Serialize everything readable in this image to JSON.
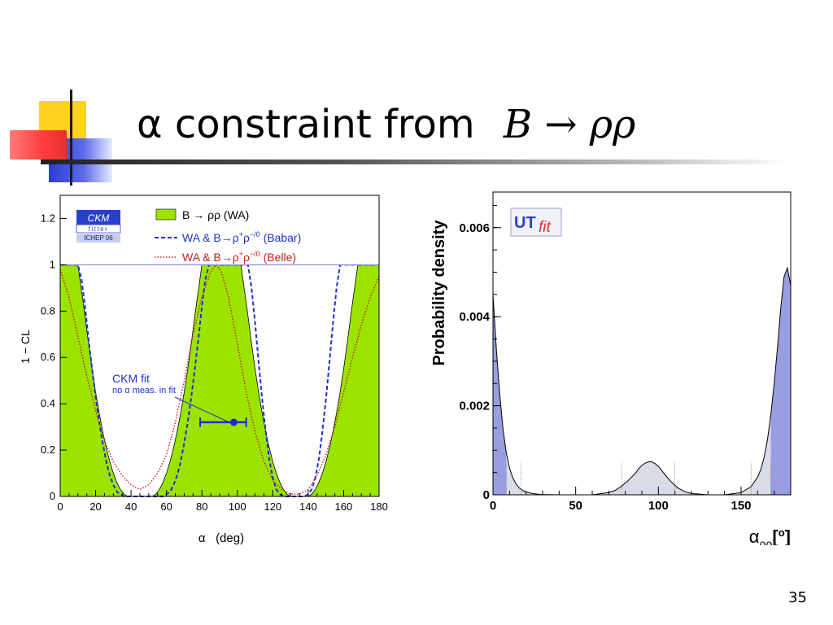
{
  "slide": {
    "title_prefix": "α constraint from",
    "title_math": "B → ρρ",
    "page_number": "35"
  },
  "colors": {
    "accent_yellow": "#FFD21F",
    "accent_red": "#FF3C3C",
    "accent_blue": "#2A3BD6",
    "wa_fill": "#9CE400",
    "babar_line": "#1F2FCC",
    "belle_line": "#C41E1E",
    "utfit_fill": "#9A9DE0",
    "utfit_light": "#D8DCE6"
  },
  "chart_data": [
    {
      "type": "area",
      "xlabel": "α   (deg)",
      "ylabel": "1 − CL",
      "xlim": [
        0,
        180
      ],
      "ylim": [
        0,
        1.3
      ],
      "x_ticks": [
        "0",
        "20",
        "40",
        "60",
        "80",
        "100",
        "120",
        "140",
        "160",
        "180"
      ],
      "y_ticks": [
        "0",
        "0.2",
        "0.4",
        "0.6",
        "0.8",
        "1",
        "1.2"
      ],
      "logo": {
        "name": "CKM",
        "sub": "fitter",
        "conference": "ICHEP 06"
      },
      "legend": [
        {
          "label": "B → ρρ (WA)"
        },
        {
          "label_prefix": "WA & B→ρ",
          "label_sup1": "+",
          "label_mid": "ρ",
          "label_sup2": "−/0",
          "label_suffix": " (Babar)"
        },
        {
          "label_prefix": "WA &  B→ρ",
          "label_sup1": "+",
          "label_mid": "ρ",
          "label_sup2": "−/0",
          "label_suffix": " (Belle)"
        }
      ],
      "annotation": {
        "line1": "CKM fit",
        "line2": "no α meas. in fit"
      },
      "fit_point": {
        "central": 98,
        "low": 79,
        "high": 105,
        "y": 0.32
      },
      "series": [
        {
          "style": "filled",
          "x": [
            0,
            10,
            12,
            14,
            16,
            18,
            20,
            22,
            24,
            26,
            28,
            30,
            32,
            34,
            36,
            38,
            40,
            42,
            44,
            46,
            48,
            50,
            52,
            54,
            56,
            58,
            60,
            62,
            64,
            66,
            68,
            70,
            72,
            74,
            76,
            78,
            80,
            82,
            84,
            86,
            88,
            90,
            92,
            94,
            96,
            98,
            100,
            102,
            104,
            106,
            108,
            110,
            112,
            114,
            116,
            118,
            120,
            122,
            124,
            126,
            128,
            130,
            132,
            134,
            136,
            138,
            140,
            142,
            144,
            146,
            148,
            150,
            152,
            154,
            156,
            158,
            160,
            162,
            164,
            166,
            168,
            170,
            180
          ],
          "y": [
            1,
            1,
            0.89,
            0.78,
            0.66,
            0.55,
            0.45,
            0.36,
            0.28,
            0.21,
            0.15,
            0.1,
            0.06,
            0.03,
            0.01,
            0,
            0,
            0,
            0,
            0,
            0,
            0,
            0,
            0.01,
            0.03,
            0.06,
            0.1,
            0.15,
            0.21,
            0.28,
            0.36,
            0.45,
            0.55,
            0.66,
            0.78,
            0.89,
            1,
            1,
            1,
            1,
            1,
            1,
            1,
            1,
            1,
            1,
            1,
            1,
            0.89,
            0.78,
            0.66,
            0.55,
            0.45,
            0.36,
            0.28,
            0.21,
            0.15,
            0.1,
            0.06,
            0.03,
            0.01,
            0,
            0,
            0,
            0,
            0,
            0,
            0.01,
            0.03,
            0.06,
            0.1,
            0.15,
            0.21,
            0.28,
            0.36,
            0.45,
            0.55,
            0.66,
            0.78,
            0.89,
            1,
            1,
            1
          ]
        },
        {
          "style": "dashed",
          "x": [
            0,
            2,
            4,
            6,
            8,
            10,
            12,
            14,
            16,
            18,
            20,
            22,
            24,
            26,
            28,
            30,
            32,
            34,
            36,
            38,
            40,
            42,
            44,
            46,
            48,
            50,
            52,
            54,
            56,
            58,
            60,
            62,
            64,
            66,
            68,
            70,
            72,
            74,
            76,
            78,
            80,
            82,
            84,
            86,
            88,
            90,
            92,
            94,
            96,
            98,
            100,
            102,
            104,
            106,
            108,
            110,
            112,
            114,
            116,
            118,
            120,
            122,
            124,
            126,
            128,
            130,
            132,
            134,
            136,
            138,
            140,
            142,
            144,
            146,
            148,
            150,
            152,
            154,
            156,
            158,
            160,
            162,
            164,
            166,
            168,
            170,
            172,
            174,
            176,
            178,
            180
          ],
          "y": [
            1,
            1,
            1,
            1,
            1,
            1,
            0.94,
            0.82,
            0.68,
            0.55,
            0.43,
            0.32,
            0.23,
            0.15,
            0.09,
            0.05,
            0.02,
            0.01,
            0,
            0,
            0,
            0,
            0,
            0,
            0,
            0,
            0,
            0,
            0,
            0,
            0.01,
            0.02,
            0.05,
            0.09,
            0.15,
            0.23,
            0.32,
            0.43,
            0.55,
            0.68,
            0.82,
            0.94,
            1,
            1,
            1,
            1,
            1,
            1,
            1,
            1,
            1,
            1,
            1,
            1,
            0.9,
            0.75,
            0.58,
            0.42,
            0.28,
            0.16,
            0.08,
            0.03,
            0.01,
            0,
            0,
            0,
            0,
            0,
            0,
            0,
            0.01,
            0.03,
            0.08,
            0.16,
            0.28,
            0.42,
            0.58,
            0.75,
            0.9,
            1,
            1,
            1,
            1,
            1,
            1,
            1,
            1,
            1,
            1,
            1,
            1
          ]
        },
        {
          "style": "dotted",
          "x": [
            0,
            5,
            10,
            15,
            20,
            25,
            30,
            35,
            40,
            45,
            50,
            55,
            60,
            65,
            70,
            75,
            80,
            85,
            88,
            91,
            95,
            100,
            105,
            110,
            115,
            120,
            125,
            130,
            135,
            140,
            145,
            150,
            155,
            160,
            165,
            170,
            175,
            180
          ],
          "y": [
            0.98,
            0.86,
            0.69,
            0.52,
            0.37,
            0.24,
            0.15,
            0.09,
            0.05,
            0.03,
            0.05,
            0.1,
            0.18,
            0.32,
            0.5,
            0.7,
            0.86,
            0.97,
            1,
            0.97,
            0.86,
            0.66,
            0.45,
            0.28,
            0.15,
            0.07,
            0.03,
            0.01,
            0.01,
            0.03,
            0.09,
            0.18,
            0.3,
            0.45,
            0.6,
            0.74,
            0.86,
            0.95
          ]
        }
      ]
    },
    {
      "type": "area",
      "xlabel": "αρρ[o]",
      "xlabel_main": "α",
      "xlabel_sub": "ρρ",
      "xlabel_unit_open": "[",
      "xlabel_unit_sup": "o",
      "xlabel_unit_close": "]",
      "ylabel": "Probability density",
      "xlim": [
        0,
        180
      ],
      "ylim": [
        0,
        0.0068
      ],
      "x_ticks": [
        "0",
        "50",
        "100",
        "150"
      ],
      "y_ticks": [
        "0",
        "0.002",
        "0.004",
        "0.006"
      ],
      "logo": {
        "ut": "UT",
        "fit": "fit"
      },
      "series": [
        {
          "style": "filled",
          "x": [
            0,
            2,
            4,
            6,
            8,
            10,
            12,
            14,
            16,
            18,
            20,
            24,
            28,
            32,
            40,
            50,
            60,
            70,
            74,
            78,
            82,
            86,
            88,
            90,
            92,
            94,
            96,
            98,
            100,
            102,
            104,
            108,
            112,
            116,
            120,
            130,
            140,
            150,
            156,
            160,
            162,
            164,
            166,
            168,
            170,
            172,
            174,
            176,
            178,
            180
          ],
          "y": [
            0.0045,
            0.0033,
            0.0023,
            0.0015,
            0.00095,
            0.0006,
            0.00038,
            0.00024,
            0.00015,
            0.0001,
            6e-05,
            3e-05,
            1e-05,
            5e-06,
            0,
            0,
            0,
            5e-05,
            0.0001,
            0.0002,
            0.00033,
            0.00048,
            0.00058,
            0.00066,
            0.00071,
            0.00074,
            0.00074,
            0.0007,
            0.00064,
            0.00055,
            0.00045,
            0.00028,
            0.00015,
            7e-05,
            3e-05,
            0,
            0,
            5e-05,
            0.00018,
            0.0004,
            0.00058,
            0.00085,
            0.00125,
            0.0018,
            0.0025,
            0.0033,
            0.0042,
            0.0049,
            0.0051,
            0.0047
          ]
        }
      ]
    }
  ]
}
